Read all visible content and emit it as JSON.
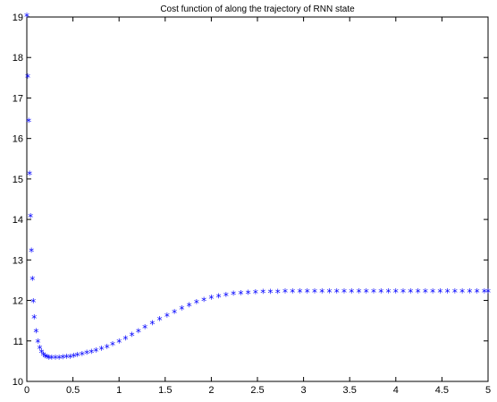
{
  "chart_data": {
    "type": "scatter",
    "title": "Cost function of along the trajectory of RNN state",
    "xlabel": "",
    "ylabel": "",
    "xlim": [
      0,
      5
    ],
    "ylim": [
      10,
      19
    ],
    "xticks": [
      0,
      0.5,
      1,
      1.5,
      2,
      2.5,
      3,
      3.5,
      4,
      4.5,
      5
    ],
    "yticks": [
      10,
      11,
      12,
      13,
      14,
      15,
      16,
      17,
      18,
      19
    ],
    "xtick_labels": [
      "0",
      "0.5",
      "1",
      "1.5",
      "2",
      "2.5",
      "3",
      "3.5",
      "4",
      "4.5",
      "5"
    ],
    "ytick_labels": [
      "10",
      "11",
      "12",
      "13",
      "14",
      "15",
      "16",
      "17",
      "18",
      "19"
    ],
    "grid": false,
    "marker": "*",
    "color": "#0000ff",
    "series": [
      {
        "x": [
          0.0,
          0.01,
          0.02,
          0.03,
          0.04,
          0.05,
          0.06,
          0.07,
          0.08,
          0.1,
          0.12,
          0.14,
          0.16,
          0.18,
          0.2,
          0.22,
          0.24,
          0.27,
          0.31,
          0.35,
          0.39,
          0.43,
          0.47,
          0.51,
          0.55,
          0.6,
          0.65,
          0.7,
          0.75,
          0.81,
          0.87,
          0.93,
          1.0,
          1.07,
          1.14,
          1.21,
          1.28,
          1.36,
          1.44,
          1.52,
          1.6,
          1.68,
          1.76,
          1.84,
          1.92,
          2.0,
          2.08,
          2.16,
          2.24,
          2.32,
          2.4,
          2.48,
          2.56,
          2.64,
          2.72,
          2.8,
          2.88,
          2.96,
          3.04,
          3.12,
          3.2,
          3.28,
          3.36,
          3.44,
          3.52,
          3.6,
          3.68,
          3.76,
          3.84,
          3.92,
          4.0,
          4.08,
          4.16,
          4.24,
          4.32,
          4.4,
          4.48,
          4.56,
          4.64,
          4.72,
          4.8,
          4.88,
          4.96,
          5.0
        ],
        "y": [
          19.0,
          17.5,
          16.4,
          15.1,
          14.05,
          13.2,
          12.5,
          11.95,
          11.55,
          11.2,
          10.95,
          10.8,
          10.7,
          10.63,
          10.59,
          10.57,
          10.55,
          10.55,
          10.55,
          10.55,
          10.56,
          10.57,
          10.58,
          10.6,
          10.62,
          10.64,
          10.67,
          10.7,
          10.73,
          10.77,
          10.82,
          10.88,
          10.95,
          11.03,
          11.12,
          11.21,
          11.3,
          11.4,
          11.5,
          11.59,
          11.68,
          11.77,
          11.85,
          11.92,
          11.98,
          12.03,
          12.07,
          12.1,
          12.13,
          12.15,
          12.16,
          12.17,
          12.18,
          12.18,
          12.18,
          12.19,
          12.19,
          12.19,
          12.19,
          12.19,
          12.19,
          12.19,
          12.19,
          12.19,
          12.19,
          12.19,
          12.19,
          12.19,
          12.19,
          12.19,
          12.19,
          12.19,
          12.19,
          12.19,
          12.19,
          12.19,
          12.19,
          12.19,
          12.19,
          12.19,
          12.19,
          12.19,
          12.19,
          12.19
        ]
      }
    ]
  }
}
